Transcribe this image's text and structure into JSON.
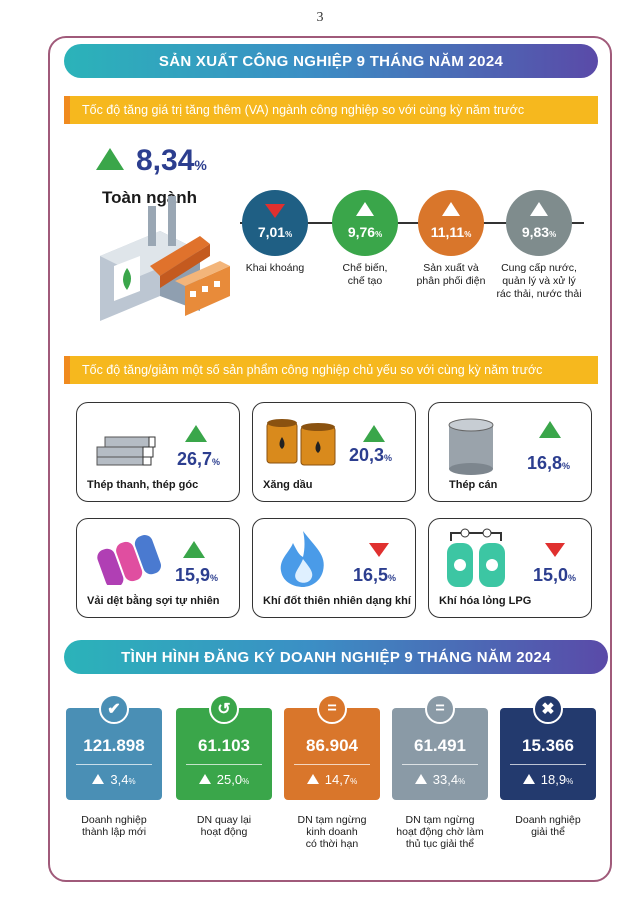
{
  "page_number": "3",
  "industry": {
    "banner": "SẢN XUẤT CÔNG NGHIỆP 9 THÁNG NĂM 2024",
    "va_subtitle": "Tốc độ tăng giá trị tăng thêm (VA) ngành công nghiệp so với cùng kỳ năm trước",
    "total_value": "8,34",
    "total_unit": "%",
    "total_label": "Toàn ngành",
    "sectors": [
      {
        "value": "7,01",
        "unit": "%",
        "direction": "down",
        "label_1": "Khai khoáng",
        "label_2": "",
        "label_3": "",
        "color": "#1f5f84"
      },
      {
        "value": "9,76",
        "unit": "%",
        "direction": "up",
        "label_1": "Chế biến,",
        "label_2": "chế tạo",
        "label_3": "",
        "color": "#3aa64a"
      },
      {
        "value": "11,11",
        "unit": "%",
        "direction": "up",
        "label_1": "Sản xuất và",
        "label_2": "phân phối điện",
        "label_3": "",
        "color": "#d9762b"
      },
      {
        "value": "9,83",
        "unit": "%",
        "direction": "up",
        "label_1": "Cung cấp nước,",
        "label_2": "quản lý và xử lý",
        "label_3": "rác thải, nước thải",
        "color": "#7f8c8d"
      }
    ],
    "products_subtitle": "Tốc độ tăng/giảm một số sản phẩm công nghiệp chủ yếu so với cùng kỳ năm trước",
    "products": [
      {
        "label": "Thép thanh, thép góc",
        "value": "26,7",
        "unit": "%",
        "direction": "up",
        "icon": "steel-bars-icon"
      },
      {
        "label": "Xăng dầu",
        "value": "20,3",
        "unit": "%",
        "direction": "up",
        "icon": "oil-barrels-icon"
      },
      {
        "label": "Thép cán",
        "value": "16,8",
        "unit": "%",
        "direction": "up",
        "icon": "steel-roll-icon"
      },
      {
        "label": "Vải dệt bằng sợi tự nhiên",
        "value": "15,9",
        "unit": "%",
        "direction": "up",
        "icon": "fabric-rolls-icon"
      },
      {
        "label": "Khí đốt thiên nhiên dạng khí",
        "value": "16,5",
        "unit": "%",
        "direction": "down",
        "icon": "gas-flame-icon"
      },
      {
        "label": "Khí hóa lỏng LPG",
        "value": "15,0",
        "unit": "%",
        "direction": "down",
        "icon": "lpg-tanks-icon"
      }
    ]
  },
  "registration": {
    "banner": "TÌNH HÌNH ĐĂNG KÝ DOANH NGHIỆP 9 THÁNG NĂM 2024",
    "cards": [
      {
        "number": "121.898",
        "pct": "3,4",
        "unit": "%",
        "badge": "✔",
        "label_1": "Doanh nghiệp",
        "label_2": "thành lập mới",
        "label_3": "",
        "color": "#4a8fb5"
      },
      {
        "number": "61.103",
        "pct": "25,0",
        "unit": "%",
        "badge": "↺",
        "label_1": "DN quay lại",
        "label_2": "hoạt động",
        "label_3": "",
        "color": "#3aa64a"
      },
      {
        "number": "86.904",
        "pct": "14,7",
        "unit": "%",
        "badge": "=",
        "label_1": "DN tạm ngừng",
        "label_2": "kinh doanh",
        "label_3": "có thời hạn",
        "color": "#d9762b"
      },
      {
        "number": "61.491",
        "pct": "33,4",
        "unit": "%",
        "badge": "=",
        "label_1": "DN tạm ngừng",
        "label_2": "hoạt động chờ làm",
        "label_3": "thủ tục giải thể",
        "color": "#8a9aa6"
      },
      {
        "number": "15.366",
        "pct": "18,9",
        "unit": "%",
        "badge": "✖",
        "label_1": "Doanh nghiệp",
        "label_2": "giải thể",
        "label_3": "",
        "color": "#233a6e"
      }
    ]
  }
}
